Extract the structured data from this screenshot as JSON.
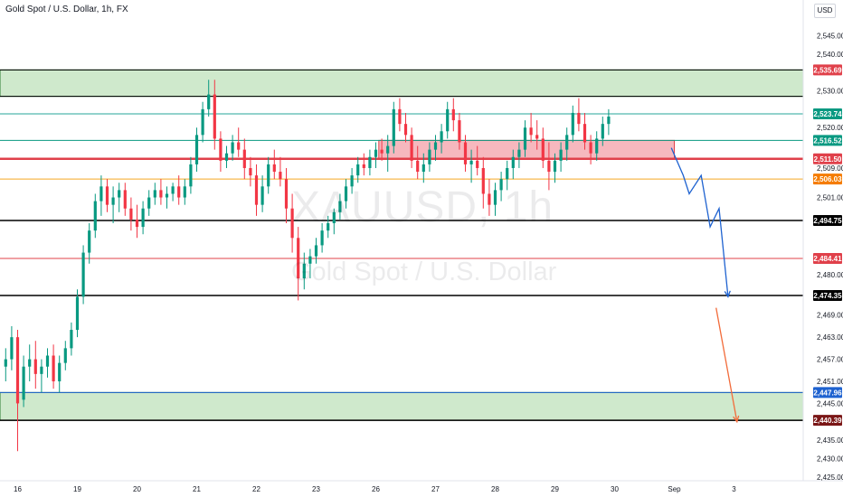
{
  "header": {
    "title": "Gold Spot / U.S. Dollar, 1h, FX"
  },
  "watermark": {
    "symbol": "XAUUSD, 1h",
    "description": "Gold Spot / U.S. Dollar"
  },
  "price_axis": {
    "currency": "USD"
  },
  "chart_data": {
    "type": "candlestick",
    "symbol": "XAUUSD",
    "interval": "1h",
    "y_range": [
      2422,
      2552
    ],
    "y_ticks": [
      {
        "value": 2545,
        "label": "2,545.00"
      },
      {
        "value": 2540,
        "label": "2,540.00"
      },
      {
        "value": 2530,
        "label": "2,530.00"
      },
      {
        "value": 2520,
        "label": "2,520.00"
      },
      {
        "value": 2509,
        "label": "2,509.00"
      },
      {
        "value": 2501,
        "label": "2,501.00"
      },
      {
        "value": 2480,
        "label": "2,480.00"
      },
      {
        "value": 2469,
        "label": "2,469.00"
      },
      {
        "value": 2463,
        "label": "2,463.00"
      },
      {
        "value": 2457,
        "label": "2,457.00"
      },
      {
        "value": 2451,
        "label": "2,451.00"
      },
      {
        "value": 2445,
        "label": "2,445.00"
      },
      {
        "value": 2435,
        "label": "2,435.00"
      },
      {
        "value": 2430,
        "label": "2,430.00"
      },
      {
        "value": 2425,
        "label": "2,425.00"
      }
    ],
    "x_ticks": [
      "16",
      "19",
      "20",
      "21",
      "22",
      "23",
      "26",
      "27",
      "28",
      "29",
      "30",
      "Sep",
      "3"
    ],
    "x_tick_index": [
      2,
      12,
      22,
      32,
      42,
      52,
      62,
      72,
      82,
      92,
      102,
      112,
      122
    ],
    "price_tags": [
      {
        "value": 2535.69,
        "label": "2,535.69",
        "color": "#e0404a"
      },
      {
        "value": 2523.74,
        "label": "2,523.74",
        "color": "#089981"
      },
      {
        "value": 2516.52,
        "label": "2,516.52",
        "color": "#089981"
      },
      {
        "value": 2511.5,
        "label": "2,511.50",
        "color": "#e0404a"
      },
      {
        "value": 2506.03,
        "label": "2,506.03",
        "color": "#f57c00"
      },
      {
        "value": 2494.75,
        "label": "2,494.75",
        "color": "#000000"
      },
      {
        "value": 2484.41,
        "label": "2,484.41",
        "color": "#e0404a"
      },
      {
        "value": 2474.35,
        "label": "2,474.35",
        "color": "#000000"
      },
      {
        "value": 2447.96,
        "label": "2,447.96",
        "color": "#1e62d0"
      },
      {
        "value": 2440.39,
        "label": "2,440.39",
        "color": "#7a1616"
      }
    ],
    "horizontal_lines": [
      {
        "value": 2535.69,
        "color": "#000000",
        "width": 1
      },
      {
        "value": 2528.5,
        "color": "#000000",
        "width": 1
      },
      {
        "value": 2523.74,
        "color": "#26a69a",
        "width": 1
      },
      {
        "value": 2516.52,
        "color": "#089981",
        "width": 1
      },
      {
        "value": 2511.5,
        "color": "#e0404a",
        "width": 2.5
      },
      {
        "value": 2506.03,
        "color": "#f5a623",
        "width": 1
      },
      {
        "value": 2494.75,
        "color": "#000000",
        "width": 1.5
      },
      {
        "value": 2484.41,
        "color": "#e0404a",
        "width": 1
      },
      {
        "value": 2474.35,
        "color": "#000000",
        "width": 1.5
      },
      {
        "value": 2447.96,
        "color": "#1e62d0",
        "width": 1
      },
      {
        "value": 2440.39,
        "color": "#000000",
        "width": 1.5
      }
    ],
    "zones": [
      {
        "from": 2528.5,
        "to": 2535.69,
        "color": "#cfe9cc",
        "border": "#2e7d32",
        "x_start": 0,
        "x_end": null
      },
      {
        "from": 2440.39,
        "to": 2447.96,
        "color": "#cfe9cc",
        "border": "#2e7d32",
        "x_start": 0,
        "x_end": null
      },
      {
        "from": 2511.5,
        "to": 2516.52,
        "color": "#f6b8be",
        "border": "#e0404a",
        "x_start": 63,
        "x_end": 112
      }
    ],
    "projection_blue": [
      [
        111.5,
        2514.5
      ],
      [
        113.5,
        2507
      ],
      [
        114.5,
        2502
      ],
      [
        116.5,
        2507
      ],
      [
        118,
        2493
      ],
      [
        119.5,
        2498
      ],
      [
        121,
        2474
      ]
    ],
    "projection_orange": [
      [
        119,
        2471
      ],
      [
        122.5,
        2440
      ]
    ],
    "candles": [
      [
        2455,
        2460,
        2451,
        2457
      ],
      [
        2457,
        2466,
        2454,
        2463
      ],
      [
        2463,
        2465,
        2432,
        2445
      ],
      [
        2446,
        2458,
        2444,
        2455
      ],
      [
        2455,
        2461,
        2451,
        2457
      ],
      [
        2457,
        2462,
        2449,
        2453
      ],
      [
        2453,
        2457,
        2448,
        2455
      ],
      [
        2455,
        2460,
        2452,
        2458
      ],
      [
        2458,
        2461,
        2449,
        2451
      ],
      [
        2451,
        2458,
        2448,
        2456
      ],
      [
        2456,
        2462,
        2454,
        2460
      ],
      [
        2460,
        2467,
        2458,
        2465
      ],
      [
        2465,
        2476,
        2463,
        2474
      ],
      [
        2474,
        2488,
        2472,
        2486
      ],
      [
        2486,
        2494,
        2483,
        2492
      ],
      [
        2492,
        2502,
        2490,
        2500
      ],
      [
        2500,
        2507,
        2496,
        2504
      ],
      [
        2504,
        2506,
        2497,
        2499
      ],
      [
        2499,
        2504,
        2494,
        2501
      ],
      [
        2501,
        2505,
        2497,
        2503
      ],
      [
        2503,
        2505,
        2496,
        2498
      ],
      [
        2498,
        2501,
        2492,
        2495
      ],
      [
        2495,
        2499,
        2490,
        2493
      ],
      [
        2493,
        2500,
        2491,
        2498
      ],
      [
        2498,
        2503,
        2496,
        2501
      ],
      [
        2501,
        2505,
        2499,
        2503
      ],
      [
        2503,
        2506,
        2499,
        2501
      ],
      [
        2501,
        2504,
        2498,
        2502
      ],
      [
        2502,
        2505,
        2500,
        2504
      ],
      [
        2504,
        2507,
        2499,
        2501
      ],
      [
        2501,
        2506,
        2499,
        2504
      ],
      [
        2504,
        2512,
        2502,
        2510
      ],
      [
        2510,
        2520,
        2508,
        2518
      ],
      [
        2518,
        2527,
        2516,
        2525
      ],
      [
        2525,
        2533,
        2523,
        2529
      ],
      [
        2529,
        2533,
        2514,
        2517
      ],
      [
        2517,
        2519,
        2508,
        2511
      ],
      [
        2511,
        2515,
        2509,
        2513
      ],
      [
        2513,
        2518,
        2511,
        2516
      ],
      [
        2516,
        2520,
        2512,
        2514
      ],
      [
        2514,
        2517,
        2506,
        2509
      ],
      [
        2509,
        2512,
        2504,
        2507
      ],
      [
        2507,
        2510,
        2496,
        2499
      ],
      [
        2499,
        2507,
        2497,
        2504
      ],
      [
        2504,
        2512,
        2502,
        2510
      ],
      [
        2510,
        2514,
        2506,
        2508
      ],
      [
        2508,
        2512,
        2504,
        2506
      ],
      [
        2506,
        2509,
        2494,
        2498
      ],
      [
        2498,
        2502,
        2486,
        2490
      ],
      [
        2490,
        2493,
        2473,
        2479
      ],
      [
        2479,
        2486,
        2476,
        2483
      ],
      [
        2483,
        2487,
        2479,
        2485
      ],
      [
        2485,
        2490,
        2483,
        2488
      ],
      [
        2488,
        2494,
        2486,
        2492
      ],
      [
        2492,
        2496,
        2490,
        2494
      ],
      [
        2494,
        2498,
        2491,
        2497
      ],
      [
        2497,
        2502,
        2495,
        2500
      ],
      [
        2500,
        2506,
        2498,
        2504
      ],
      [
        2504,
        2509,
        2502,
        2507
      ],
      [
        2507,
        2512,
        2505,
        2510
      ],
      [
        2510,
        2513,
        2507,
        2509
      ],
      [
        2509,
        2514,
        2507,
        2512
      ],
      [
        2512,
        2516,
        2509,
        2514
      ],
      [
        2514,
        2517,
        2511,
        2513
      ],
      [
        2513,
        2518,
        2508,
        2515
      ],
      [
        2515,
        2527,
        2513,
        2525
      ],
      [
        2525,
        2528,
        2519,
        2521
      ],
      [
        2521,
        2524,
        2516,
        2518
      ],
      [
        2518,
        2520,
        2509,
        2511
      ],
      [
        2511,
        2515,
        2506,
        2508
      ],
      [
        2508,
        2513,
        2505,
        2510
      ],
      [
        2510,
        2516,
        2508,
        2514
      ],
      [
        2514,
        2518,
        2511,
        2516
      ],
      [
        2516,
        2521,
        2513,
        2519
      ],
      [
        2519,
        2527,
        2517,
        2525
      ],
      [
        2525,
        2528,
        2519,
        2522
      ],
      [
        2522,
        2524,
        2514,
        2516
      ],
      [
        2516,
        2518,
        2508,
        2510
      ],
      [
        2510,
        2514,
        2505,
        2511
      ],
      [
        2511,
        2515,
        2507,
        2509
      ],
      [
        2509,
        2512,
        2498,
        2502
      ],
      [
        2502,
        2506,
        2496,
        2499
      ],
      [
        2499,
        2505,
        2496,
        2503
      ],
      [
        2503,
        2508,
        2500,
        2506
      ],
      [
        2506,
        2511,
        2503,
        2509
      ],
      [
        2509,
        2514,
        2506,
        2512
      ],
      [
        2512,
        2516,
        2509,
        2514
      ],
      [
        2514,
        2522,
        2512,
        2520
      ],
      [
        2520,
        2524,
        2516,
        2518
      ],
      [
        2518,
        2522,
        2514,
        2517
      ],
      [
        2517,
        2520,
        2509,
        2511
      ],
      [
        2511,
        2516,
        2503,
        2508
      ],
      [
        2508,
        2513,
        2505,
        2511
      ],
      [
        2511,
        2516,
        2508,
        2514
      ],
      [
        2514,
        2520,
        2511,
        2518
      ],
      [
        2518,
        2526,
        2516,
        2524
      ],
      [
        2524,
        2528,
        2519,
        2521
      ],
      [
        2521,
        2524,
        2514,
        2516
      ],
      [
        2516,
        2518,
        2510,
        2513
      ],
      [
        2513,
        2519,
        2511,
        2517
      ],
      [
        2517,
        2523,
        2515,
        2521
      ],
      [
        2521,
        2525,
        2518,
        2523
      ]
    ]
  }
}
